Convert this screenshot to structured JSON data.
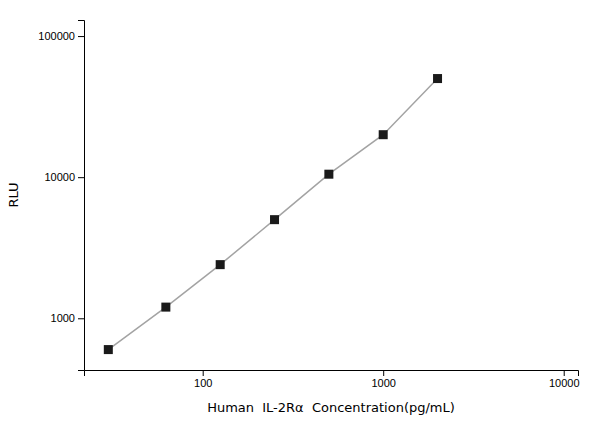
{
  "chart_data": {
    "type": "line",
    "xlabel": "Human  IL-2Rα  Concentration(pg/mL)",
    "ylabel": "RLU",
    "x": [
      30,
      62.5,
      125,
      250,
      500,
      1000,
      2000
    ],
    "values": [
      600,
      1200,
      2400,
      5000,
      10500,
      20000,
      50000
    ],
    "log": true,
    "xlim": [
      22,
      12000
    ],
    "ylim": [
      430,
      130000
    ],
    "xticks": [
      100,
      1000,
      10000
    ],
    "yticks": [
      1000,
      10000,
      100000
    ],
    "color": "#1a1a1a",
    "marker": "square",
    "grid": false
  }
}
